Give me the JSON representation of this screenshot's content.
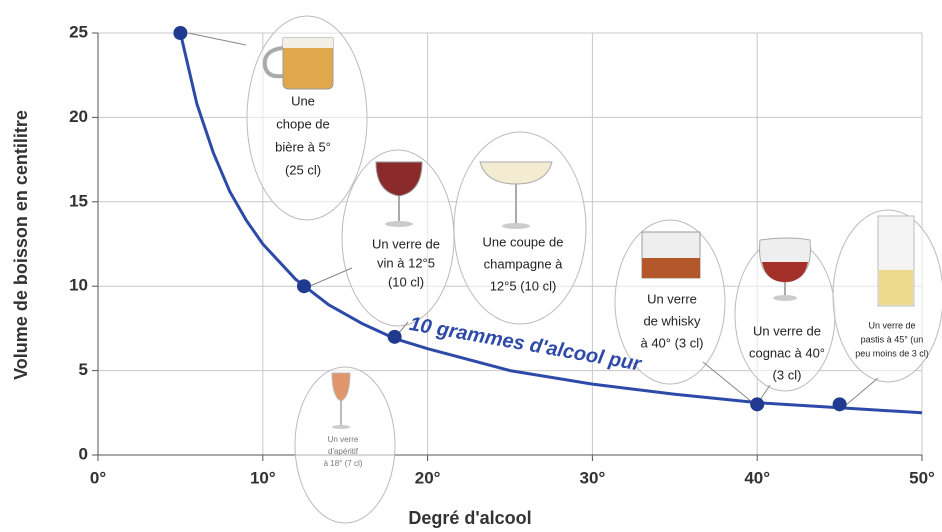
{
  "chart_data": {
    "type": "line",
    "xlabel": "Degré d'alcool",
    "ylabel": "Volume de boisson en centilitre",
    "xlim": [
      0,
      50
    ],
    "ylim": [
      0,
      25
    ],
    "xticks": [
      {
        "value": 0,
        "label": "0°"
      },
      {
        "value": 10,
        "label": "10°"
      },
      {
        "value": 20,
        "label": "20°"
      },
      {
        "value": 30,
        "label": "30°"
      },
      {
        "value": 40,
        "label": "40°"
      },
      {
        "value": 50,
        "label": "50°"
      }
    ],
    "yticks": [
      0,
      5,
      10,
      15,
      20,
      25
    ],
    "grid": true,
    "series": [
      {
        "name": "10 grammes d'alcool pur",
        "color": "#2e4aa8",
        "x": [
          5,
          6,
          7,
          8,
          9,
          10,
          12,
          14,
          16,
          18,
          20,
          25,
          30,
          35,
          40,
          45,
          50
        ],
        "values": [
          25,
          20.8,
          17.9,
          15.6,
          13.9,
          12.5,
          10.4,
          8.9,
          7.8,
          6.9,
          6.3,
          5,
          4.2,
          3.6,
          3.1,
          2.8,
          2.5
        ]
      }
    ],
    "points": {
      "color": "#1f3a8f",
      "x": [
        5,
        12.5,
        18,
        40,
        45
      ],
      "values": [
        25,
        10,
        7,
        3,
        3
      ]
    },
    "annotations": [
      [
        "Une",
        "chope de",
        "bière à 5°",
        "(25 cl)"
      ],
      [
        "Un verre de",
        "vin à 12°5",
        "(10 cl)"
      ],
      [
        "Une coupe de",
        "champagne  à",
        "12°5 (10 cl)"
      ],
      [
        "Un verre",
        "de whisky",
        "à 40° (3 cl)"
      ],
      [
        "Un verre de",
        "cognac à 40°",
        "(3 cl)"
      ],
      [
        "Un verre de",
        "pastis à 45° (un",
        "peu moins de 3 cl)"
      ],
      [
        "Un verre",
        "d'apéritif",
        "à 18° (7 cl)"
      ]
    ]
  }
}
